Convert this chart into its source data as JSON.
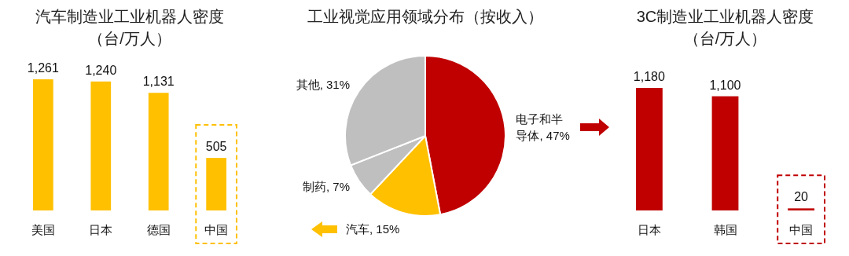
{
  "chart_data": [
    {
      "type": "bar",
      "title": "汽车制造业工业机器人密度",
      "subtitle": "（台/万人）",
      "categories": [
        "美国",
        "日本",
        "德国",
        "中国"
      ],
      "values": [
        1261,
        1240,
        1131,
        505
      ],
      "color": "#ffc000",
      "value_labels": [
        "1,261",
        "1,240",
        "1,131",
        "505"
      ]
    },
    {
      "type": "pie",
      "title": "工业视觉应用领域分布（按收入）",
      "categories": [
        "电子和半导体",
        "汽车",
        "制药",
        "其他"
      ],
      "values": [
        47,
        15,
        7,
        31
      ],
      "colors": [
        "#c00000",
        "#ffc000",
        "#bfbfbf",
        "#bfbfbf"
      ],
      "value_labels": [
        "47%",
        "15%",
        "7%",
        "31%"
      ]
    },
    {
      "type": "bar",
      "title": "3C制造业工业机器人密度",
      "subtitle": "（台/万人）",
      "categories": [
        "日本",
        "韩国",
        "中国"
      ],
      "values": [
        1180,
        1100,
        20
      ],
      "color": "#c00000",
      "value_labels": [
        "1,180",
        "1,100",
        "20"
      ]
    }
  ]
}
